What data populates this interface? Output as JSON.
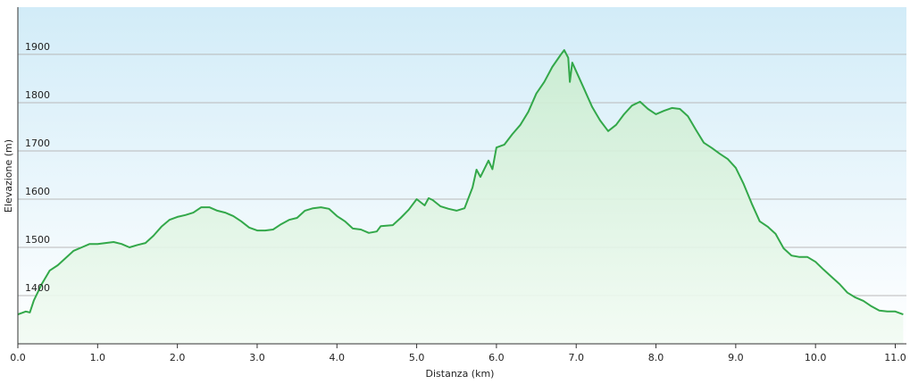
{
  "chart_data": {
    "type": "area",
    "x_label": "Distanza  (km)",
    "y_label": "Elevazione (m)",
    "x": [
      0,
      0.1,
      0.15,
      0.2,
      0.3,
      0.4,
      0.5,
      0.6,
      0.7,
      0.8,
      0.9,
      1.0,
      1.1,
      1.2,
      1.3,
      1.4,
      1.5,
      1.6,
      1.7,
      1.8,
      1.9,
      2.0,
      2.1,
      2.2,
      2.3,
      2.4,
      2.5,
      2.6,
      2.7,
      2.8,
      2.9,
      3.0,
      3.1,
      3.2,
      3.3,
      3.4,
      3.5,
      3.6,
      3.7,
      3.8,
      3.9,
      4.0,
      4.1,
      4.2,
      4.3,
      4.4,
      4.5,
      4.55,
      4.7,
      4.8,
      4.9,
      5.0,
      5.1,
      5.15,
      5.2,
      5.3,
      5.4,
      5.5,
      5.6,
      5.7,
      5.75,
      5.8,
      5.9,
      5.95,
      6.0,
      6.1,
      6.2,
      6.3,
      6.4,
      6.5,
      6.6,
      6.7,
      6.8,
      6.85,
      6.9,
      6.92,
      6.95,
      7.0,
      7.1,
      7.2,
      7.3,
      7.4,
      7.5,
      7.6,
      7.7,
      7.8,
      7.9,
      8.0,
      8.1,
      8.2,
      8.3,
      8.4,
      8.5,
      8.6,
      8.7,
      8.8,
      8.9,
      9.0,
      9.1,
      9.2,
      9.3,
      9.4,
      9.5,
      9.6,
      9.7,
      9.8,
      9.9,
      10.0,
      10.1,
      10.2,
      10.3,
      10.4,
      10.5,
      10.6,
      10.7,
      10.8,
      10.9,
      11.0,
      11.1
    ],
    "series": [
      {
        "color": "#33a84a",
        "values": [
          1361,
          1367,
          1365,
          1390,
          1424,
          1452,
          1463,
          1478,
          1493,
          1500,
          1507,
          1507,
          1509,
          1511,
          1507,
          1500,
          1505,
          1509,
          1524,
          1543,
          1557,
          1563,
          1567,
          1572,
          1583,
          1583,
          1576,
          1572,
          1565,
          1554,
          1541,
          1535,
          1535,
          1537,
          1548,
          1557,
          1561,
          1576,
          1581,
          1583,
          1580,
          1565,
          1554,
          1539,
          1537,
          1530,
          1533,
          1544,
          1546,
          1561,
          1578,
          1600,
          1587,
          1602,
          1598,
          1585,
          1580,
          1576,
          1581,
          1624,
          1661,
          1646,
          1680,
          1662,
          1707,
          1713,
          1735,
          1754,
          1781,
          1819,
          1843,
          1874,
          1898,
          1909,
          1893,
          1843,
          1883,
          1865,
          1828,
          1791,
          1763,
          1741,
          1754,
          1776,
          1794,
          1802,
          1787,
          1776,
          1783,
          1789,
          1787,
          1772,
          1744,
          1717,
          1706,
          1694,
          1683,
          1665,
          1631,
          1591,
          1554,
          1543,
          1528,
          1498,
          1483,
          1480,
          1480,
          1470,
          1454,
          1439,
          1424,
          1406,
          1396,
          1389,
          1378,
          1369,
          1367,
          1367,
          1361
        ]
      }
    ],
    "xlim": [
      0,
      11.14
    ],
    "ylim": [
      1300,
      1998
    ],
    "xticks": [
      {
        "value": 0,
        "label": "0.0"
      },
      {
        "value": 1,
        "label": "1.0"
      },
      {
        "value": 2,
        "label": "2.0"
      },
      {
        "value": 3,
        "label": "3.0"
      },
      {
        "value": 4,
        "label": "4.0"
      },
      {
        "value": 5,
        "label": "5.0"
      },
      {
        "value": 6,
        "label": "6.0"
      },
      {
        "value": 7,
        "label": "7.0"
      },
      {
        "value": 8,
        "label": "8.0"
      },
      {
        "value": 9,
        "label": "9.0"
      },
      {
        "value": 10,
        "label": "10.0"
      },
      {
        "value": 11,
        "label": "11.0"
      }
    ],
    "yticks": [
      1400,
      1500,
      1600,
      1700,
      1800,
      1900
    ],
    "grid": true
  }
}
